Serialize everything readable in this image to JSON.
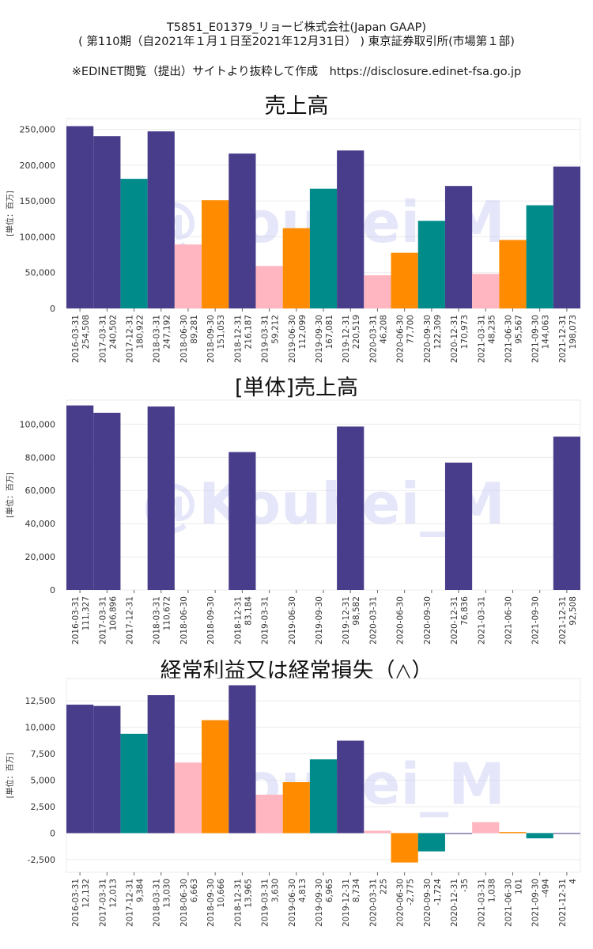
{
  "header": {
    "line1": "T5851_E01379_リョービ株式会社(Japan GAAP)",
    "line2": "( 第110期（自2021年１月１日至2021年12月31日） ) 東京証券取引所(市場第１部)",
    "line3": "※EDINET閲覧（提出）サイトより抜粋して作成　https://disclosure.edinet-fsa.go.jp"
  },
  "watermark": "@Kouhei_M",
  "colors": {
    "q4": "#483d8b",
    "q3": "#008b8b",
    "q2": "#ff8c00",
    "q1": "#ffb6c1",
    "grid": "#ebebeb"
  },
  "chart_data": [
    {
      "type": "bar",
      "title": "売上高",
      "ylabel": "[単位：百万]",
      "ylim": [
        0,
        265000
      ],
      "yticks": [
        0,
        50000,
        100000,
        150000,
        200000,
        250000
      ],
      "ytick_labels": [
        "0",
        "50,000",
        "100,000",
        "150,000",
        "200,000",
        "250,000"
      ],
      "categories": [
        "2016-03-31",
        "2017-03-31",
        "2017-12-31",
        "2018-03-31",
        "2018-06-30",
        "2018-09-30",
        "2018-12-31",
        "2019-03-31",
        "2019-06-30",
        "2019-09-30",
        "2019-12-31",
        "2020-03-31",
        "2020-06-30",
        "2020-09-30",
        "2020-12-31",
        "2021-03-31",
        "2021-06-30",
        "2021-09-30",
        "2021-12-31"
      ],
      "values": [
        254508,
        240502,
        180922,
        247192,
        89281,
        151053,
        216187,
        59212,
        112099,
        167081,
        220519,
        46208,
        77700,
        122309,
        170973,
        48235,
        95567,
        144063,
        198073
      ],
      "value_labels": [
        "254,508",
        "240,502",
        "180,922",
        "247,192",
        "89,281",
        "151,053",
        "216,187",
        "59,212",
        "112,099",
        "167,081",
        "220,519",
        "46,208",
        "77,700",
        "122,309",
        "170,973",
        "48,235",
        "95,567",
        "144,063",
        "198,073"
      ],
      "colors": [
        "q4",
        "q4",
        "q3",
        "q4",
        "q1",
        "q2",
        "q4",
        "q1",
        "q2",
        "q3",
        "q4",
        "q1",
        "q2",
        "q3",
        "q4",
        "q1",
        "q2",
        "q3",
        "q4"
      ]
    },
    {
      "type": "bar",
      "title": "[単体]売上高",
      "ylabel": "[単位：百万]",
      "ylim": [
        0,
        114500
      ],
      "yticks": [
        0,
        20000,
        40000,
        60000,
        80000,
        100000
      ],
      "ytick_labels": [
        "0",
        "20,000",
        "40,000",
        "60,000",
        "80,000",
        "100,000"
      ],
      "categories": [
        "2016-03-31",
        "2017-03-31",
        "2017-12-31",
        "2018-03-31",
        "2018-06-30",
        "2018-09-30",
        "2018-12-31",
        "2019-03-31",
        "2019-06-30",
        "2019-09-30",
        "2019-12-31",
        "2020-03-31",
        "2020-06-30",
        "2020-09-30",
        "2020-12-31",
        "2021-03-31",
        "2021-06-30",
        "2021-09-30",
        "2021-12-31"
      ],
      "values": [
        111327,
        106896,
        null,
        110672,
        null,
        null,
        83184,
        null,
        null,
        null,
        98582,
        null,
        null,
        null,
        76836,
        null,
        null,
        null,
        92508
      ],
      "value_labels": [
        "111,327",
        "106,896",
        "",
        "110,672",
        "",
        "",
        "83,184",
        "",
        "",
        "",
        "98,582",
        "",
        "",
        "",
        "76,836",
        "",
        "",
        "",
        "92,508"
      ],
      "colors": [
        "q4",
        "q4",
        "q4",
        "q4",
        "q4",
        "q4",
        "q4",
        "q4",
        "q4",
        "q4",
        "q4",
        "q4",
        "q4",
        "q4",
        "q4",
        "q4",
        "q4",
        "q4",
        "q4"
      ]
    },
    {
      "type": "bar",
      "title": "経常利益又は経常損失（△）",
      "ylabel": "[単位：百万]",
      "ylim": [
        -3700,
        14600
      ],
      "yticks": [
        -2500,
        0,
        2500,
        5000,
        7500,
        10000,
        12500
      ],
      "ytick_labels": [
        "-2,500",
        "0",
        "2,500",
        "5,000",
        "7,500",
        "10,000",
        "12,500"
      ],
      "categories": [
        "2016-03-31",
        "2017-03-31",
        "2017-12-31",
        "2018-03-31",
        "2018-06-30",
        "2018-09-30",
        "2018-12-31",
        "2019-03-31",
        "2019-06-30",
        "2019-09-30",
        "2019-12-31",
        "2020-03-31",
        "2020-06-30",
        "2020-09-30",
        "2020-12-31",
        "2021-03-31",
        "2021-06-30",
        "2021-09-30",
        "2021-12-31"
      ],
      "values": [
        12132,
        12013,
        9384,
        13030,
        6663,
        10666,
        13965,
        3630,
        4813,
        6965,
        8734,
        225,
        -2775,
        -1724,
        -35,
        1038,
        101,
        -494,
        4
      ],
      "value_labels": [
        "12,132",
        "12,013",
        "9,384",
        "13,030",
        "6,663",
        "10,666",
        "13,965",
        "3,630",
        "4,813",
        "6,965",
        "8,734",
        "225",
        "-2,775",
        "-1,724",
        "-35",
        "1,038",
        "101",
        "-494",
        "4"
      ],
      "colors": [
        "q4",
        "q4",
        "q3",
        "q4",
        "q1",
        "q2",
        "q4",
        "q1",
        "q2",
        "q3",
        "q4",
        "q1",
        "q2",
        "q3",
        "q4",
        "q1",
        "q2",
        "q3",
        "q4"
      ]
    }
  ]
}
